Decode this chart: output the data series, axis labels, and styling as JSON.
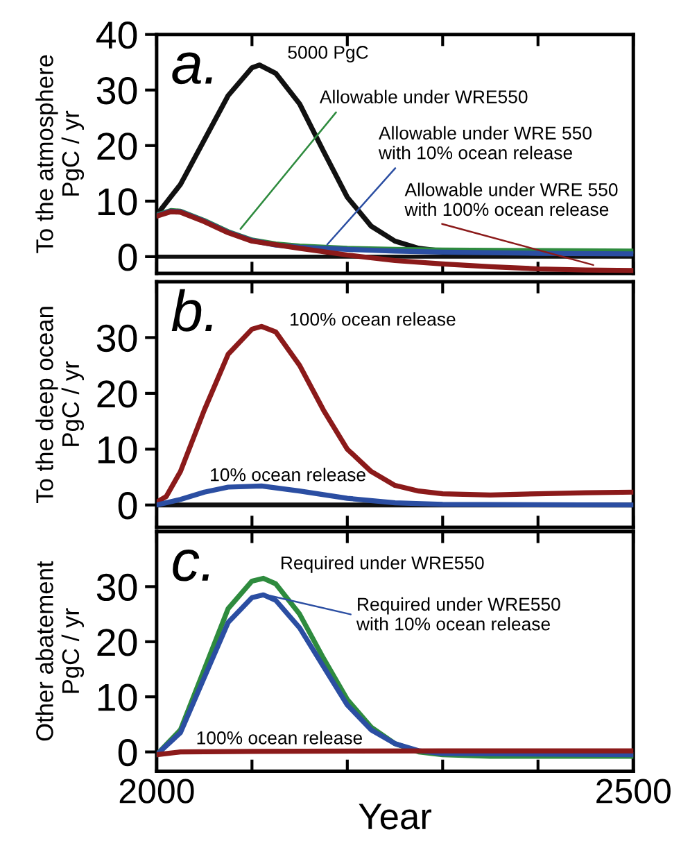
{
  "chart_data": [
    {
      "type": "line",
      "title": "a.",
      "ylabel": "To the atmosphere\nPgC / yr",
      "xlim": [
        2000,
        2500
      ],
      "ylim": [
        -3,
        40
      ],
      "yticks": [
        0,
        10,
        20,
        30,
        40
      ],
      "tick_labels": "y",
      "xticks": [
        2000,
        {
          "value": 2100,
          "label": null
        },
        {
          "value": 2200,
          "label": null
        },
        {
          "value": 2300,
          "label": null
        },
        {
          "value": 2400,
          "label": null
        },
        2500
      ],
      "ref_lines": [
        {
          "axis": "y",
          "value": 0,
          "color": "#111111"
        }
      ],
      "series": [
        {
          "color": "#111111",
          "x": [
            2000,
            2025,
            2050,
            2075,
            2100,
            2108,
            2125,
            2150,
            2175,
            2200,
            2225,
            2250,
            2275,
            2300,
            2350,
            2400,
            2450,
            2500
          ],
          "values": [
            7.5,
            13,
            21,
            29,
            34,
            34.5,
            33,
            27.5,
            19,
            10.7,
            5.5,
            2.8,
            1.5,
            1,
            0.8,
            0.8,
            0.8,
            0.8
          ]
        },
        {
          "color": "#2e8b3e",
          "x": [
            2000,
            2015,
            2025,
            2050,
            2075,
            2100,
            2125,
            2150,
            2200,
            2250,
            2300,
            2400,
            2500
          ],
          "values": [
            7.5,
            8.3,
            8.2,
            6.5,
            4.5,
            3,
            2.3,
            1.9,
            1.5,
            1.3,
            1.2,
            1.1,
            1
          ]
        },
        {
          "color": "#2b4ea2",
          "x": [
            2000,
            2015,
            2025,
            2050,
            2075,
            2100,
            2125,
            2150,
            2200,
            2250,
            2300,
            2400,
            2500
          ],
          "values": [
            7.4,
            8.2,
            8.1,
            6.4,
            4.4,
            2.9,
            2.1,
            1.7,
            1.3,
            1,
            0.8,
            0.6,
            0.5
          ]
        },
        {
          "color": "#8b1a1a",
          "x": [
            2000,
            2015,
            2025,
            2050,
            2075,
            2100,
            2150,
            2200,
            2250,
            2300,
            2350,
            2400,
            2450,
            2500
          ],
          "values": [
            7.3,
            8.1,
            8,
            6.3,
            4.3,
            2.8,
            1.5,
            0.3,
            -0.7,
            -1.3,
            -1.8,
            -2.2,
            -2.4,
            -2.5
          ]
        }
      ],
      "annotations": [
        {
          "text": "5000 PgC",
          "x": 2108,
          "y": 34.5
        },
        {
          "text": "Allowable under WRE550",
          "x": 2088,
          "y": 5
        },
        {
          "text": "Allowable under WRE 550\nwith 10% ocean release",
          "x": 2179,
          "y": 2.2
        },
        {
          "text": "Allowable under WRE 550\nwith 100% ocean release",
          "x": 2458,
          "y": -1.5
        }
      ]
    },
    {
      "type": "line",
      "title": "b.",
      "ylabel": "To the deep ocean\nPgC / yr",
      "xlim": [
        2000,
        2500
      ],
      "ylim": [
        -4,
        40
      ],
      "yticks": [
        0,
        10,
        20,
        30
      ],
      "tick_labels": "y",
      "xticks": [
        2000,
        {
          "value": 2100,
          "label": null
        },
        {
          "value": 2200,
          "label": null
        },
        {
          "value": 2300,
          "label": null
        },
        {
          "value": 2400,
          "label": null
        },
        2500
      ],
      "series": [
        {
          "color": "#111111",
          "x": [
            2000,
            2500
          ],
          "values": [
            0,
            0
          ]
        },
        {
          "color": "#8b1a1a",
          "x": [
            2000,
            2010,
            2025,
            2050,
            2075,
            2100,
            2110,
            2125,
            2150,
            2175,
            2200,
            2225,
            2250,
            2275,
            2300,
            2350,
            2400,
            2450,
            2500
          ],
          "values": [
            0.5,
            1.5,
            6,
            17,
            27,
            31.5,
            32,
            31,
            25,
            17,
            10,
            6,
            3.5,
            2.5,
            2,
            1.8,
            2,
            2.2,
            2.3
          ]
        },
        {
          "color": "#2b4ea2",
          "x": [
            2000,
            2025,
            2050,
            2075,
            2110,
            2150,
            2200,
            2250,
            2300,
            2500
          ],
          "values": [
            0,
            1,
            2.3,
            3.2,
            3.4,
            2.5,
            1.2,
            0.4,
            0.1,
            0
          ]
        }
      ],
      "annotations": [
        {
          "text": "100% ocean release",
          "x": 2110,
          "y": 32
        },
        {
          "text": "10% ocean release",
          "x": 2110,
          "y": 3.4
        }
      ]
    },
    {
      "type": "line",
      "title": "c.",
      "ylabel": "Other abatement\nPgC / yr",
      "xlabel": "Year",
      "xlim": [
        2000,
        2500
      ],
      "ylim": [
        -3.5,
        40
      ],
      "yticks": [
        0,
        10,
        20,
        30
      ],
      "xticks": [
        2000,
        {
          "value": 2100,
          "label": null
        },
        {
          "value": 2200,
          "label": null
        },
        {
          "value": 2300,
          "label": null
        },
        {
          "value": 2400,
          "label": null
        },
        2500
      ],
      "series": [
        {
          "color": "#2e8b3e",
          "x": [
            2000,
            2025,
            2050,
            2075,
            2100,
            2112,
            2125,
            2150,
            2175,
            2200,
            2225,
            2250,
            2275,
            2300,
            2350,
            2500
          ],
          "values": [
            -0.5,
            4,
            15,
            26,
            31,
            31.5,
            30.5,
            25,
            17,
            9.5,
            4.5,
            1.5,
            0,
            -0.5,
            -0.8,
            -0.8
          ]
        },
        {
          "color": "#2b4ea2",
          "x": [
            2000,
            2025,
            2050,
            2075,
            2100,
            2112,
            2125,
            2150,
            2175,
            2200,
            2225,
            2250,
            2275,
            2300,
            2500
          ],
          "values": [
            -0.5,
            3.5,
            13.5,
            23.5,
            28,
            28.5,
            27.5,
            22.5,
            15.5,
            8.5,
            4,
            1.5,
            0.2,
            -0.3,
            -0.5
          ]
        },
        {
          "color": "#8b1a1a",
          "x": [
            2000,
            2025,
            2100,
            2300,
            2500
          ],
          "values": [
            -0.5,
            0,
            0.1,
            0.2,
            0.2
          ]
        }
      ],
      "annotations": [
        {
          "text": "Required under WRE550",
          "x": 2112,
          "y": 31.5
        },
        {
          "text": "Required under WRE550\nwith 10% ocean release",
          "x": 2115,
          "y": 28.5
        },
        {
          "text": "100% ocean release",
          "x": 2050,
          "y": 0
        }
      ]
    }
  ]
}
